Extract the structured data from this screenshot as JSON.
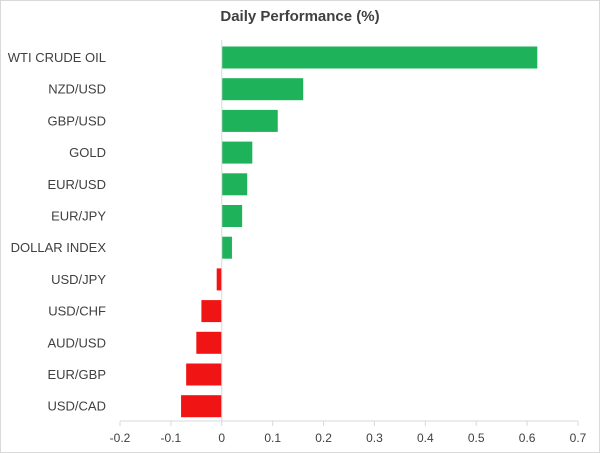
{
  "chart_data": {
    "type": "bar",
    "orientation": "horizontal",
    "title": "Daily Performance (%)",
    "xlabel": "",
    "ylabel": "",
    "categories": [
      "WTI CRUDE OIL",
      "NZD/USD",
      "GBP/USD",
      "GOLD",
      "EUR/USD",
      "EUR/JPY",
      "DOLLAR INDEX",
      "USD/JPY",
      "USD/CHF",
      "AUD/USD",
      "EUR/GBP",
      "USD/CAD"
    ],
    "values": [
      0.62,
      0.16,
      0.11,
      0.06,
      0.05,
      0.04,
      0.02,
      -0.01,
      -0.04,
      -0.05,
      -0.07,
      -0.08
    ],
    "xlim": [
      -0.2,
      0.7
    ],
    "xticks": [
      -0.2,
      -0.1,
      0,
      0.1,
      0.2,
      0.3,
      0.4,
      0.5,
      0.6,
      0.7
    ],
    "xtick_labels": [
      "-0.2",
      "-0.1",
      "0",
      "0.1",
      "0.2",
      "0.3",
      "0.4",
      "0.5",
      "0.6",
      "0.7"
    ],
    "colors": {
      "positive": "#1eb35a",
      "negative": "#f01414",
      "axis": "#d9d9d9",
      "text": "#404040"
    },
    "grid": false,
    "legend": "none"
  }
}
